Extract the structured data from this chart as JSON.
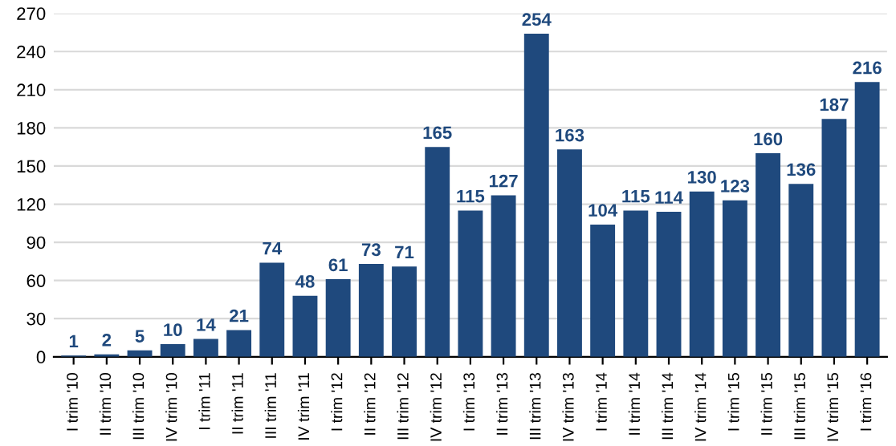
{
  "chart_data": {
    "type": "bar",
    "categories": [
      "I trim '10",
      "II trim '10",
      "III trim '10",
      "IV trim '10",
      "I trim '11",
      "II trim '11",
      "III trim '11",
      "IV trim '11",
      "I trim '12",
      "II trim '12",
      "III trim '12",
      "IV trim '12",
      "I trim '13",
      "II trim '13",
      "III trim '13",
      "IV trim '13",
      "I trim '14",
      "II trim '14",
      "III trim '14",
      "IV trim '14",
      "I trim '15",
      "II trim '15",
      "III trim '15",
      "IV trim '15",
      "I trim '16"
    ],
    "values": [
      1,
      2,
      5,
      10,
      14,
      21,
      74,
      48,
      61,
      73,
      71,
      165,
      115,
      127,
      254,
      163,
      104,
      115,
      114,
      130,
      123,
      160,
      136,
      187,
      216
    ],
    "color": "#1f497d",
    "ylim": [
      0,
      270
    ],
    "yticks": [
      0,
      30,
      60,
      90,
      120,
      150,
      180,
      210,
      240,
      270
    ],
    "grid": "y",
    "data_labels": true,
    "legend": false
  }
}
